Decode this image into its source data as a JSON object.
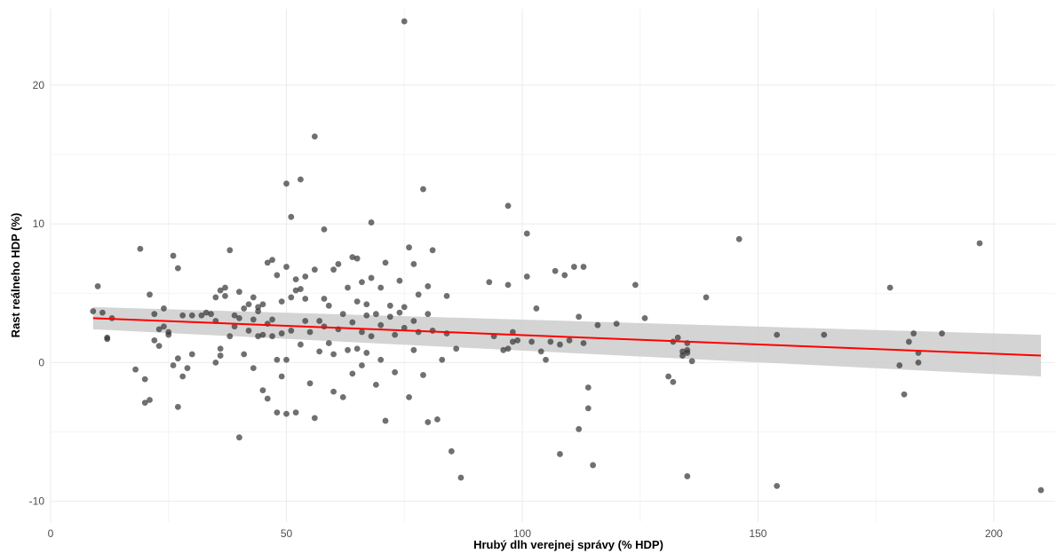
{
  "chart_data": {
    "type": "scatter",
    "title": "",
    "xlabel": "Hrubý dlh verejnej správy (% HDP)",
    "ylabel": "Rast reálneho HDP (%)",
    "xlim": [
      0,
      213
    ],
    "ylim": [
      -11.5,
      25.5
    ],
    "x_ticks": [
      0,
      50,
      100,
      150,
      200
    ],
    "y_ticks": [
      -10,
      0,
      10,
      20
    ],
    "grid": true,
    "point_color": "#333333",
    "trend": {
      "type": "linear",
      "color": "#ff0000",
      "band_color": "#cccccc",
      "x_start": 9,
      "y_start": 3.2,
      "x_end": 210,
      "y_end": 0.5,
      "band_lower_start": 2.4,
      "band_upper_start": 4.0,
      "band_lower_end": -1.0,
      "band_upper_end": 2.0
    },
    "points": [
      [
        9,
        3.7
      ],
      [
        10,
        5.5
      ],
      [
        11,
        3.6
      ],
      [
        12,
        1.8
      ],
      [
        12,
        1.7
      ],
      [
        13,
        3.2
      ],
      [
        18,
        -0.5
      ],
      [
        19,
        8.2
      ],
      [
        20,
        -1.2
      ],
      [
        20,
        -2.9
      ],
      [
        21,
        4.9
      ],
      [
        21,
        -2.7
      ],
      [
        22,
        3.5
      ],
      [
        22,
        1.6
      ],
      [
        23,
        1.2
      ],
      [
        23,
        2.4
      ],
      [
        24,
        2.6
      ],
      [
        24,
        3.9
      ],
      [
        25,
        2.2
      ],
      [
        25,
        2.0
      ],
      [
        26,
        -0.2
      ],
      [
        26,
        7.7
      ],
      [
        27,
        6.8
      ],
      [
        27,
        0.3
      ],
      [
        27,
        -3.2
      ],
      [
        28,
        3.4
      ],
      [
        28,
        -1.0
      ],
      [
        29,
        -0.4
      ],
      [
        30,
        3.4
      ],
      [
        30,
        0.6
      ],
      [
        32,
        3.4
      ],
      [
        33,
        3.6
      ],
      [
        34,
        3.5
      ],
      [
        35,
        0.0
      ],
      [
        35,
        4.7
      ],
      [
        35,
        3.0
      ],
      [
        36,
        5.2
      ],
      [
        36,
        0.5
      ],
      [
        36,
        1.0
      ],
      [
        37,
        4.8
      ],
      [
        37,
        5.4
      ],
      [
        38,
        8.1
      ],
      [
        38,
        1.9
      ],
      [
        39,
        2.6
      ],
      [
        39,
        3.4
      ],
      [
        40,
        5.1
      ],
      [
        40,
        -5.4
      ],
      [
        40,
        3.2
      ],
      [
        41,
        0.6
      ],
      [
        41,
        3.9
      ],
      [
        42,
        4.2
      ],
      [
        42,
        2.3
      ],
      [
        43,
        4.7
      ],
      [
        43,
        3.1
      ],
      [
        43,
        -0.4
      ],
      [
        44,
        4.0
      ],
      [
        44,
        1.9
      ],
      [
        44,
        3.7
      ],
      [
        45,
        4.2
      ],
      [
        45,
        2.0
      ],
      [
        45,
        -2.0
      ],
      [
        46,
        7.2
      ],
      [
        46,
        2.8
      ],
      [
        46,
        -2.6
      ],
      [
        47,
        7.4
      ],
      [
        47,
        3.1
      ],
      [
        47,
        1.9
      ],
      [
        48,
        6.3
      ],
      [
        48,
        -3.6
      ],
      [
        48,
        0.2
      ],
      [
        49,
        4.4
      ],
      [
        49,
        2.1
      ],
      [
        49,
        -1.0
      ],
      [
        50,
        12.9
      ],
      [
        50,
        6.9
      ],
      [
        50,
        0.2
      ],
      [
        50,
        -3.7
      ],
      [
        51,
        10.5
      ],
      [
        51,
        4.7
      ],
      [
        51,
        2.3
      ],
      [
        52,
        6.0
      ],
      [
        52,
        5.2
      ],
      [
        52,
        -3.6
      ],
      [
        53,
        13.2
      ],
      [
        53,
        5.3
      ],
      [
        53,
        1.3
      ],
      [
        54,
        4.6
      ],
      [
        54,
        6.2
      ],
      [
        54,
        3.0
      ],
      [
        55,
        2.2
      ],
      [
        55,
        -1.5
      ],
      [
        56,
        16.3
      ],
      [
        56,
        6.7
      ],
      [
        56,
        -4.0
      ],
      [
        57,
        3.0
      ],
      [
        57,
        0.8
      ],
      [
        58,
        9.6
      ],
      [
        58,
        2.6
      ],
      [
        58,
        4.6
      ],
      [
        59,
        4.1
      ],
      [
        59,
        1.4
      ],
      [
        60,
        6.7
      ],
      [
        60,
        -2.1
      ],
      [
        60,
        0.6
      ],
      [
        61,
        7.1
      ],
      [
        61,
        2.4
      ],
      [
        62,
        3.5
      ],
      [
        62,
        -2.5
      ],
      [
        63,
        5.4
      ],
      [
        63,
        0.9
      ],
      [
        64,
        7.6
      ],
      [
        64,
        2.9
      ],
      [
        64,
        -0.8
      ],
      [
        65,
        7.5
      ],
      [
        65,
        4.4
      ],
      [
        65,
        1.0
      ],
      [
        66,
        5.8
      ],
      [
        66,
        2.2
      ],
      [
        66,
        -0.2
      ],
      [
        67,
        4.2
      ],
      [
        67,
        3.4
      ],
      [
        67,
        0.7
      ],
      [
        68,
        6.1
      ],
      [
        68,
        10.1
      ],
      [
        68,
        1.9
      ],
      [
        69,
        3.5
      ],
      [
        69,
        -1.6
      ],
      [
        70,
        5.4
      ],
      [
        70,
        2.7
      ],
      [
        70,
        0.2
      ],
      [
        71,
        7.2
      ],
      [
        71,
        -4.2
      ],
      [
        72,
        4.1
      ],
      [
        72,
        3.3
      ],
      [
        73,
        2.0
      ],
      [
        73,
        -0.7
      ],
      [
        74,
        3.6
      ],
      [
        74,
        5.9
      ],
      [
        75,
        24.6
      ],
      [
        75,
        2.5
      ],
      [
        75,
        4.0
      ],
      [
        76,
        8.3
      ],
      [
        76,
        -2.5
      ],
      [
        77,
        7.1
      ],
      [
        77,
        3.0
      ],
      [
        77,
        0.9
      ],
      [
        78,
        4.9
      ],
      [
        78,
        2.2
      ],
      [
        79,
        12.5
      ],
      [
        79,
        -0.9
      ],
      [
        80,
        5.5
      ],
      [
        80,
        3.5
      ],
      [
        80,
        -4.3
      ],
      [
        81,
        8.1
      ],
      [
        81,
        2.3
      ],
      [
        82,
        -4.1
      ],
      [
        83,
        0.2
      ],
      [
        84,
        4.8
      ],
      [
        84,
        2.1
      ],
      [
        85,
        -6.4
      ],
      [
        86,
        1.0
      ],
      [
        87,
        -8.3
      ],
      [
        93,
        5.8
      ],
      [
        94,
        1.9
      ],
      [
        96,
        0.9
      ],
      [
        97,
        11.3
      ],
      [
        97,
        5.6
      ],
      [
        97,
        1.0
      ],
      [
        98,
        2.2
      ],
      [
        98,
        1.5
      ],
      [
        99,
        1.6
      ],
      [
        101,
        6.2
      ],
      [
        101,
        9.3
      ],
      [
        102,
        1.5
      ],
      [
        103,
        3.9
      ],
      [
        104,
        0.8
      ],
      [
        105,
        0.2
      ],
      [
        106,
        1.5
      ],
      [
        107,
        6.6
      ],
      [
        108,
        -6.6
      ],
      [
        108,
        1.3
      ],
      [
        109,
        6.3
      ],
      [
        110,
        1.6
      ],
      [
        111,
        6.9
      ],
      [
        112,
        3.3
      ],
      [
        112,
        -4.8
      ],
      [
        113,
        6.9
      ],
      [
        113,
        1.4
      ],
      [
        114,
        -1.8
      ],
      [
        114,
        -3.3
      ],
      [
        115,
        -7.4
      ],
      [
        116,
        2.7
      ],
      [
        120,
        2.8
      ],
      [
        124,
        5.6
      ],
      [
        126,
        3.2
      ],
      [
        131,
        -1.0
      ],
      [
        132,
        1.5
      ],
      [
        132,
        -1.4
      ],
      [
        133,
        1.8
      ],
      [
        134,
        0.8
      ],
      [
        134,
        0.5
      ],
      [
        135,
        1.4
      ],
      [
        135,
        0.9
      ],
      [
        135,
        0.7
      ],
      [
        135,
        -8.2
      ],
      [
        136,
        0.1
      ],
      [
        139,
        4.7
      ],
      [
        146,
        8.9
      ],
      [
        154,
        -8.9
      ],
      [
        154,
        2.0
      ],
      [
        164,
        2.0
      ],
      [
        178,
        5.4
      ],
      [
        180,
        -0.2
      ],
      [
        181,
        -2.3
      ],
      [
        182,
        1.5
      ],
      [
        183,
        2.1
      ],
      [
        184,
        0.7
      ],
      [
        184,
        0.0
      ],
      [
        189,
        2.1
      ],
      [
        197,
        8.6
      ],
      [
        210,
        -9.2
      ]
    ]
  }
}
